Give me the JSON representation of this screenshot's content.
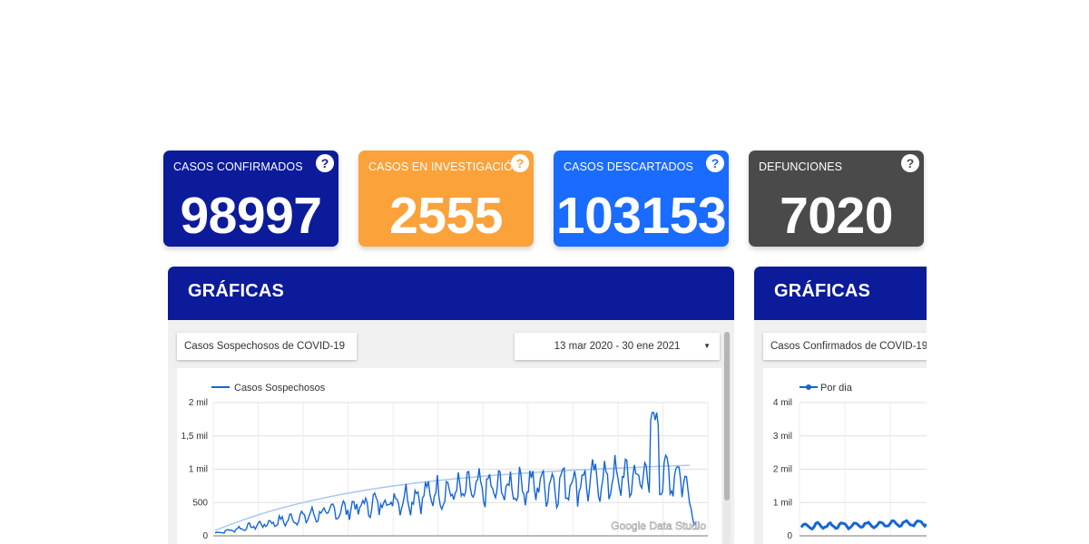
{
  "cards": [
    {
      "label": "CASOS CONFIRMADOS",
      "value": "98997",
      "color": "#0c1b9a",
      "help": "?"
    },
    {
      "label": "CASOS EN INVESTIGACIÓN",
      "value": "2555",
      "color": "#fba23a",
      "help": "?"
    },
    {
      "label": "CASOS DESCARTADOS",
      "value": "103153",
      "color": "#1a6bff",
      "help": "?"
    },
    {
      "label": "DEFUNCIONES",
      "value": "7020",
      "color": "#4a4a4a",
      "help": "?"
    }
  ],
  "panels": [
    {
      "title": "GRÁFICAS",
      "filter_label": "Casos Sospechosos de COVID-19",
      "date_range": "13 mar 2020 - 30 ene 2021",
      "dropdown_icon": "caret-down-icon"
    },
    {
      "title": "GRÁFICAS",
      "filter_label": "Casos Confirmados de COVID-19"
    }
  ],
  "watermark": "Google Data Studio",
  "chart_data": [
    {
      "type": "line",
      "series": [
        {
          "name": "Casos Sospechosos",
          "color": "#1565d8"
        }
      ],
      "x_range": [
        "2020-03-13",
        "2021-01-30"
      ],
      "y_ticks": [
        "0",
        "500",
        "1 mil",
        "1,5 mil",
        "2 mil"
      ],
      "ylim": [
        0,
        2000
      ],
      "y_peak": 1850,
      "trend": {
        "color": "#a8c8f0"
      },
      "legend": "top-left"
    },
    {
      "type": "line",
      "series": [
        {
          "name": "Por dia",
          "color": "#1565d8"
        }
      ],
      "y_ticks": [
        "0",
        "1 mil",
        "2 mil",
        "3 mil",
        "4 mil"
      ],
      "ylim": [
        0,
        4000
      ],
      "legend": "top-left"
    }
  ]
}
